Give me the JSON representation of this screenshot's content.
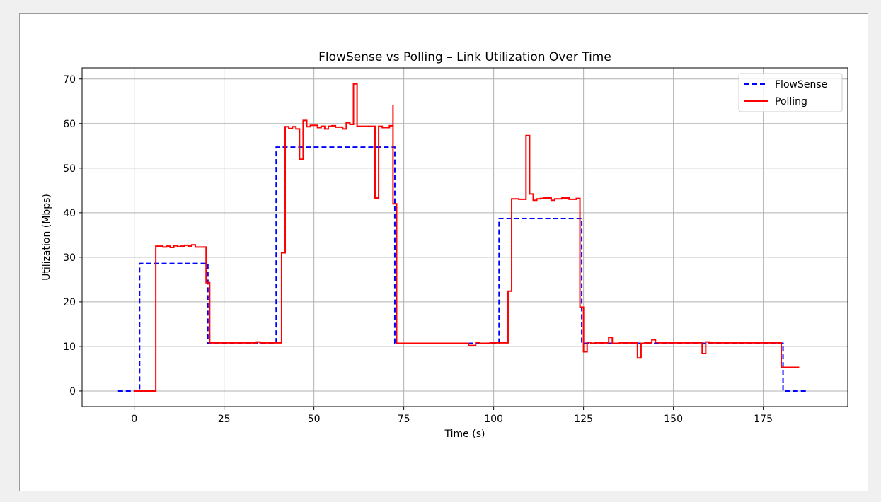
{
  "chart_data": {
    "type": "line",
    "title": "FlowSense vs Polling – Link Utilization Over Time",
    "xlabel": "Time (s)",
    "ylabel": "Utilization (Mbps)",
    "xlim": [
      -14.5,
      198.5
    ],
    "ylim": [
      -3.5,
      72.5
    ],
    "xticks": [
      0,
      25,
      50,
      75,
      100,
      125,
      150,
      175
    ],
    "yticks": [
      0,
      10,
      20,
      30,
      40,
      50,
      60,
      70
    ],
    "grid": true,
    "legend_position": "top-right",
    "step": true,
    "series": [
      {
        "name": "FlowSense",
        "color": "#0000ff",
        "style": "dashed",
        "x": [
          -4.5,
          1.5,
          1.5,
          20.5,
          20.5,
          39.5,
          39.5,
          72.5,
          72.5,
          101.5,
          101.5,
          124.5,
          124.5,
          180.5,
          180.5,
          187
        ],
        "y": [
          0,
          0,
          28.6,
          28.6,
          10.7,
          10.7,
          54.7,
          54.7,
          10.7,
          10.7,
          38.7,
          38.7,
          10.7,
          10.7,
          0,
          0
        ]
      },
      {
        "name": "Polling",
        "color": "#ff0000",
        "style": "solid",
        "x": [
          0,
          6,
          6,
          8,
          9,
          10,
          11,
          12,
          13,
          14,
          15,
          16,
          17,
          20,
          20,
          21,
          21,
          34,
          35,
          41,
          41,
          42,
          43,
          44,
          45,
          46,
          47,
          48,
          49,
          51,
          52,
          53,
          54,
          55,
          56,
          58,
          59,
          60,
          61,
          62,
          63,
          67,
          68,
          69,
          71,
          72,
          72,
          73,
          92,
          93,
          95,
          96,
          99,
          104,
          105,
          107,
          109,
          110,
          111,
          112,
          113,
          114,
          116,
          117,
          119,
          121,
          123,
          124,
          124,
          125,
          126,
          127,
          128,
          132,
          133,
          135,
          140,
          141,
          142,
          144,
          145,
          146,
          158,
          159,
          160,
          180,
          180,
          181,
          185
        ],
        "y": [
          0,
          0,
          32.5,
          32.3,
          32.5,
          32.2,
          32.6,
          32.4,
          32.5,
          32.7,
          32.5,
          32.8,
          32.3,
          24.3,
          24.3,
          10.7,
          10.8,
          11.0,
          10.8,
          10.9,
          31.0,
          59.3,
          58.9,
          59.3,
          58.8,
          52.0,
          60.7,
          59.3,
          59.6,
          59.1,
          59.4,
          58.8,
          59.4,
          59.5,
          59.2,
          58.8,
          60.2,
          59.8,
          68.9,
          59.4,
          59.4,
          43.3,
          59.4,
          59.1,
          59.5,
          64.2,
          42.0,
          10.7,
          10.7,
          10.2,
          10.9,
          10.7,
          10.8,
          22.4,
          43.1,
          43.0,
          57.3,
          44.2,
          42.8,
          43.1,
          43.2,
          43.3,
          42.8,
          43.1,
          43.3,
          43.0,
          43.2,
          43.0,
          18.8,
          8.8,
          10.9,
          10.7,
          10.8,
          12.0,
          10.7,
          10.8,
          7.4,
          10.7,
          10.8,
          11.5,
          10.9,
          10.8,
          8.4,
          11.0,
          10.8,
          10.7,
          5.3,
          5.3,
          5.3
        ]
      }
    ]
  }
}
